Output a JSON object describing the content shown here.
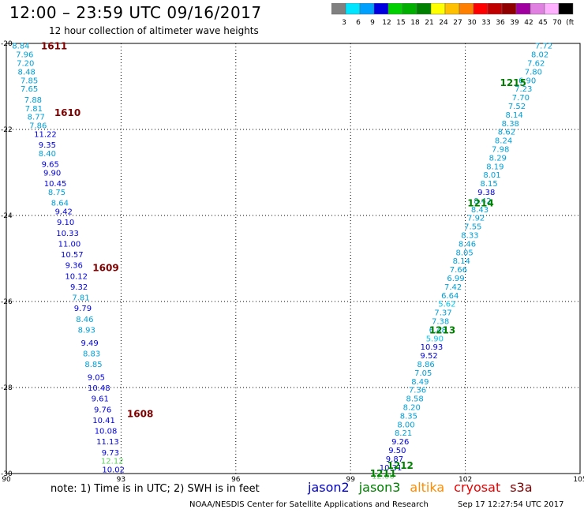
{
  "header": {
    "title": "12:00 – 23:59 UTC 09/16/2017",
    "subtitle": "12 hour collection of altimeter wave heights"
  },
  "color_scale": {
    "labels": [
      "3",
      "6",
      "9",
      "12",
      "15",
      "18",
      "21",
      "24",
      "27",
      "30",
      "33",
      "36",
      "39",
      "42",
      "45",
      "70",
      "(ft)"
    ],
    "colors": [
      "#808080",
      "#00e5ff",
      "#00a0ff",
      "#0000e0",
      "#00d000",
      "#00b000",
      "#008000",
      "#ffff00",
      "#ffc000",
      "#ff8000",
      "#ff0000",
      "#c00000",
      "#900000",
      "#a000a0",
      "#e080e0",
      "#ffb0ff",
      "#000000"
    ]
  },
  "footer": {
    "note": "note:  1) Time is in UTC;  2) SWH is in feet",
    "satellites": [
      {
        "name": "jason2",
        "color": "#0000cc"
      },
      {
        "name": "jason3",
        "color": "#008000"
      },
      {
        "name": "altika",
        "color": "#ff8c00"
      },
      {
        "name": "cryosat",
        "color": "#ee0000"
      },
      {
        "name": "s3a",
        "color": "#800000"
      }
    ],
    "credit": "NOAA/NESDIS Center for Satellite Applications and Research",
    "timestamp": "Sep 17 12:27:54 UTC 2017"
  },
  "chart_data": {
    "type": "scatter",
    "title": "12:00 – 23:59 UTC 09/16/2017",
    "xlim": [
      90,
      105
    ],
    "ylim": [
      -30,
      -20
    ],
    "xticks": [
      90,
      93,
      96,
      99,
      102,
      105
    ],
    "yticks": [
      -20,
      -22,
      -24,
      -26,
      -28,
      -30
    ],
    "grid": true,
    "tracks": [
      {
        "time": "1611",
        "color": "#800000",
        "x": 91.25,
        "y": -20.05
      },
      {
        "time": "1610",
        "color": "#800000",
        "x": 91.6,
        "y": -21.6
      },
      {
        "time": "1609",
        "color": "#800000",
        "x": 92.6,
        "y": -25.2
      },
      {
        "time": "1608",
        "color": "#800000",
        "x": 93.5,
        "y": -28.6
      },
      {
        "time": "1215",
        "color": "#008000",
        "x": 103.25,
        "y": -20.9
      },
      {
        "time": "1214",
        "color": "#008000",
        "x": 102.4,
        "y": -23.7
      },
      {
        "time": "1213",
        "color": "#008000",
        "x": 101.4,
        "y": -26.65
      },
      {
        "time": "1212",
        "color": "#008000",
        "x": 100.3,
        "y": -29.8
      },
      {
        "time": "1211",
        "color": "#008000",
        "x": 99.85,
        "y": -29.98
      }
    ],
    "series": [
      {
        "name": "west-track",
        "points": [
          {
            "x": 90.38,
            "y": -20.05,
            "v": "8.84",
            "c": "#00a0d8"
          },
          {
            "x": 90.48,
            "y": -20.25,
            "v": "7.96",
            "c": "#00a0d8"
          },
          {
            "x": 90.5,
            "y": -20.45,
            "v": "7.20",
            "c": "#00a0d8"
          },
          {
            "x": 90.53,
            "y": -20.65,
            "v": "8.48",
            "c": "#00a0d8"
          },
          {
            "x": 90.6,
            "y": -20.85,
            "v": "7.85",
            "c": "#00a0d8"
          },
          {
            "x": 90.6,
            "y": -21.05,
            "v": "7.65",
            "c": "#00a0d8"
          },
          {
            "x": 90.7,
            "y": -21.3,
            "v": "7.88",
            "c": "#00a0d8"
          },
          {
            "x": 90.72,
            "y": -21.5,
            "v": "7.81",
            "c": "#00a0d8"
          },
          {
            "x": 90.78,
            "y": -21.7,
            "v": "8.77",
            "c": "#00a0d8"
          },
          {
            "x": 90.83,
            "y": -21.9,
            "v": "7.86",
            "c": "#00a0d8"
          },
          {
            "x": 91.02,
            "y": -22.1,
            "v": "11.22",
            "c": "#0000e0"
          },
          {
            "x": 91.07,
            "y": -22.35,
            "v": "9.35",
            "c": "#0000e0"
          },
          {
            "x": 91.07,
            "y": -22.55,
            "v": "8.40",
            "c": "#00a0d8"
          },
          {
            "x": 91.15,
            "y": -22.8,
            "v": "9.65",
            "c": "#0000e0"
          },
          {
            "x": 91.2,
            "y": -23.0,
            "v": "9.90",
            "c": "#0000e0"
          },
          {
            "x": 91.28,
            "y": -23.25,
            "v": "10.45",
            "c": "#0000e0"
          },
          {
            "x": 91.32,
            "y": -23.45,
            "v": "8.75",
            "c": "#00a0d8"
          },
          {
            "x": 91.4,
            "y": -23.7,
            "v": "8.64",
            "c": "#00a0d8"
          },
          {
            "x": 91.5,
            "y": -23.9,
            "v": "9.42",
            "c": "#0000e0"
          },
          {
            "x": 91.55,
            "y": -24.15,
            "v": "9.10",
            "c": "#0000e0"
          },
          {
            "x": 91.6,
            "y": -24.4,
            "v": "10.33",
            "c": "#0000e0"
          },
          {
            "x": 91.65,
            "y": -24.65,
            "v": "11.00",
            "c": "#0000e0"
          },
          {
            "x": 91.72,
            "y": -24.9,
            "v": "10.57",
            "c": "#0000e0"
          },
          {
            "x": 91.77,
            "y": -25.15,
            "v": "9.36",
            "c": "#0000e0"
          },
          {
            "x": 91.83,
            "y": -25.4,
            "v": "10.12",
            "c": "#0000e0"
          },
          {
            "x": 91.9,
            "y": -25.65,
            "v": "9.32",
            "c": "#0000e0"
          },
          {
            "x": 91.95,
            "y": -25.9,
            "v": "7.81",
            "c": "#00a0d8"
          },
          {
            "x": 92.0,
            "y": -26.15,
            "v": "9.79",
            "c": "#0000e0"
          },
          {
            "x": 92.05,
            "y": -26.4,
            "v": "8.46",
            "c": "#00a0d8"
          },
          {
            "x": 92.1,
            "y": -26.65,
            "v": "8.93",
            "c": "#00a0d8"
          },
          {
            "x": 92.18,
            "y": -26.95,
            "v": "9.49",
            "c": "#0000e0"
          },
          {
            "x": 92.23,
            "y": -27.2,
            "v": "8.83",
            "c": "#00a0d8"
          },
          {
            "x": 92.28,
            "y": -27.45,
            "v": "8.85",
            "c": "#00a0d8"
          },
          {
            "x": 92.35,
            "y": -27.75,
            "v": "9.05",
            "c": "#0000e0"
          },
          {
            "x": 92.42,
            "y": -28.0,
            "v": "10.48",
            "c": "#0000e0"
          },
          {
            "x": 92.45,
            "y": -28.25,
            "v": "9.61",
            "c": "#0000e0"
          },
          {
            "x": 92.52,
            "y": -28.5,
            "v": "9.76",
            "c": "#0000e0"
          },
          {
            "x": 92.55,
            "y": -28.75,
            "v": "10.41",
            "c": "#0000e0"
          },
          {
            "x": 92.6,
            "y": -29.0,
            "v": "10.08",
            "c": "#0000e0"
          },
          {
            "x": 92.65,
            "y": -29.25,
            "v": "11.13",
            "c": "#0000e0"
          },
          {
            "x": 92.72,
            "y": -29.5,
            "v": "9.73",
            "c": "#0000e0"
          },
          {
            "x": 92.77,
            "y": -29.7,
            "v": "12.12",
            "c": "#60d060"
          },
          {
            "x": 92.8,
            "y": -29.9,
            "v": "10.02",
            "c": "#0000e0"
          }
        ]
      },
      {
        "name": "east-track",
        "points": [
          {
            "x": 104.05,
            "y": -20.05,
            "v": "7.72",
            "c": "#00a0d8"
          },
          {
            "x": 103.95,
            "y": -20.25,
            "v": "8.02",
            "c": "#00a0d8"
          },
          {
            "x": 103.85,
            "y": -20.45,
            "v": "7.62",
            "c": "#00a0d8"
          },
          {
            "x": 103.78,
            "y": -20.65,
            "v": "7.80",
            "c": "#00a0d8"
          },
          {
            "x": 103.62,
            "y": -20.85,
            "v": "6.90",
            "c": "#00a0d8"
          },
          {
            "x": 103.52,
            "y": -21.05,
            "v": "7.23",
            "c": "#00a0d8"
          },
          {
            "x": 103.45,
            "y": -21.25,
            "v": "7.70",
            "c": "#00a0d8"
          },
          {
            "x": 103.35,
            "y": -21.45,
            "v": "7.52",
            "c": "#00a0d8"
          },
          {
            "x": 103.28,
            "y": -21.65,
            "v": "8.14",
            "c": "#00a0d8"
          },
          {
            "x": 103.18,
            "y": -21.85,
            "v": "8.38",
            "c": "#00a0d8"
          },
          {
            "x": 103.08,
            "y": -22.05,
            "v": "8.62",
            "c": "#00a0d8"
          },
          {
            "x": 103.0,
            "y": -22.25,
            "v": "8.24",
            "c": "#00a0d8"
          },
          {
            "x": 102.92,
            "y": -22.45,
            "v": "7.98",
            "c": "#00a0d8"
          },
          {
            "x": 102.85,
            "y": -22.65,
            "v": "8.29",
            "c": "#00a0d8"
          },
          {
            "x": 102.78,
            "y": -22.85,
            "v": "8.19",
            "c": "#00a0d8"
          },
          {
            "x": 102.7,
            "y": -23.05,
            "v": "8.01",
            "c": "#00a0d8"
          },
          {
            "x": 102.62,
            "y": -23.25,
            "v": "8.15",
            "c": "#00a0d8"
          },
          {
            "x": 102.55,
            "y": -23.45,
            "v": "9.38",
            "c": "#0000e0"
          },
          {
            "x": 102.45,
            "y": -23.65,
            "v": "8.42",
            "c": "#00a0d8"
          },
          {
            "x": 102.38,
            "y": -23.85,
            "v": "8.43",
            "c": "#00a0d8"
          },
          {
            "x": 102.28,
            "y": -24.05,
            "v": "7.92",
            "c": "#00a0d8"
          },
          {
            "x": 102.2,
            "y": -24.25,
            "v": "7.55",
            "c": "#00a0d8"
          },
          {
            "x": 102.12,
            "y": -24.45,
            "v": "8.33",
            "c": "#00a0d8"
          },
          {
            "x": 102.05,
            "y": -24.65,
            "v": "8.46",
            "c": "#00a0d8"
          },
          {
            "x": 101.98,
            "y": -24.85,
            "v": "8.05",
            "c": "#00a0d8"
          },
          {
            "x": 101.9,
            "y": -25.05,
            "v": "8.14",
            "c": "#00a0d8"
          },
          {
            "x": 101.82,
            "y": -25.25,
            "v": "7.66",
            "c": "#00a0d8"
          },
          {
            "x": 101.75,
            "y": -25.45,
            "v": "6.99",
            "c": "#00a0d8"
          },
          {
            "x": 101.68,
            "y": -25.65,
            "v": "7.42",
            "c": "#00a0d8"
          },
          {
            "x": 101.6,
            "y": -25.85,
            "v": "6.64",
            "c": "#00a0d8"
          },
          {
            "x": 101.52,
            "y": -26.05,
            "v": "5.62",
            "c": "#00c8f0"
          },
          {
            "x": 101.42,
            "y": -26.25,
            "v": "7.37",
            "c": "#00a0d8"
          },
          {
            "x": 101.35,
            "y": -26.45,
            "v": "7.38",
            "c": "#00a0d8"
          },
          {
            "x": 101.28,
            "y": -26.65,
            "v": "6.48",
            "c": "#00a0d8"
          },
          {
            "x": 101.2,
            "y": -26.85,
            "v": "5.90",
            "c": "#00c8f0"
          },
          {
            "x": 101.12,
            "y": -27.05,
            "v": "10.93",
            "c": "#0000e0"
          },
          {
            "x": 101.05,
            "y": -27.25,
            "v": "9.52",
            "c": "#0000e0"
          },
          {
            "x": 100.97,
            "y": -27.45,
            "v": "8.86",
            "c": "#00a0d8"
          },
          {
            "x": 100.9,
            "y": -27.65,
            "v": "7.05",
            "c": "#00a0d8"
          },
          {
            "x": 100.82,
            "y": -27.85,
            "v": "8.49",
            "c": "#00a0d8"
          },
          {
            "x": 100.75,
            "y": -28.05,
            "v": "7.36",
            "c": "#00a0d8"
          },
          {
            "x": 100.68,
            "y": -28.25,
            "v": "8.58",
            "c": "#00a0d8"
          },
          {
            "x": 100.6,
            "y": -28.45,
            "v": "8.20",
            "c": "#00a0d8"
          },
          {
            "x": 100.52,
            "y": -28.65,
            "v": "8.35",
            "c": "#00a0d8"
          },
          {
            "x": 100.45,
            "y": -28.85,
            "v": "8.00",
            "c": "#00a0d8"
          },
          {
            "x": 100.38,
            "y": -29.05,
            "v": "8.21",
            "c": "#00a0d8"
          },
          {
            "x": 100.3,
            "y": -29.25,
            "v": "9.26",
            "c": "#0000e0"
          },
          {
            "x": 100.22,
            "y": -29.45,
            "v": "9.50",
            "c": "#0000e0"
          },
          {
            "x": 100.15,
            "y": -29.65,
            "v": "9.87",
            "c": "#0000e0"
          },
          {
            "x": 100.05,
            "y": -29.85,
            "v": "10.31",
            "c": "#0000e0"
          },
          {
            "x": 99.85,
            "y": -30.05,
            "v": "12.06",
            "c": "#60d060"
          },
          {
            "x": 99.75,
            "y": -30.25,
            "v": "11.76",
            "c": "#0000e0"
          }
        ]
      }
    ]
  }
}
